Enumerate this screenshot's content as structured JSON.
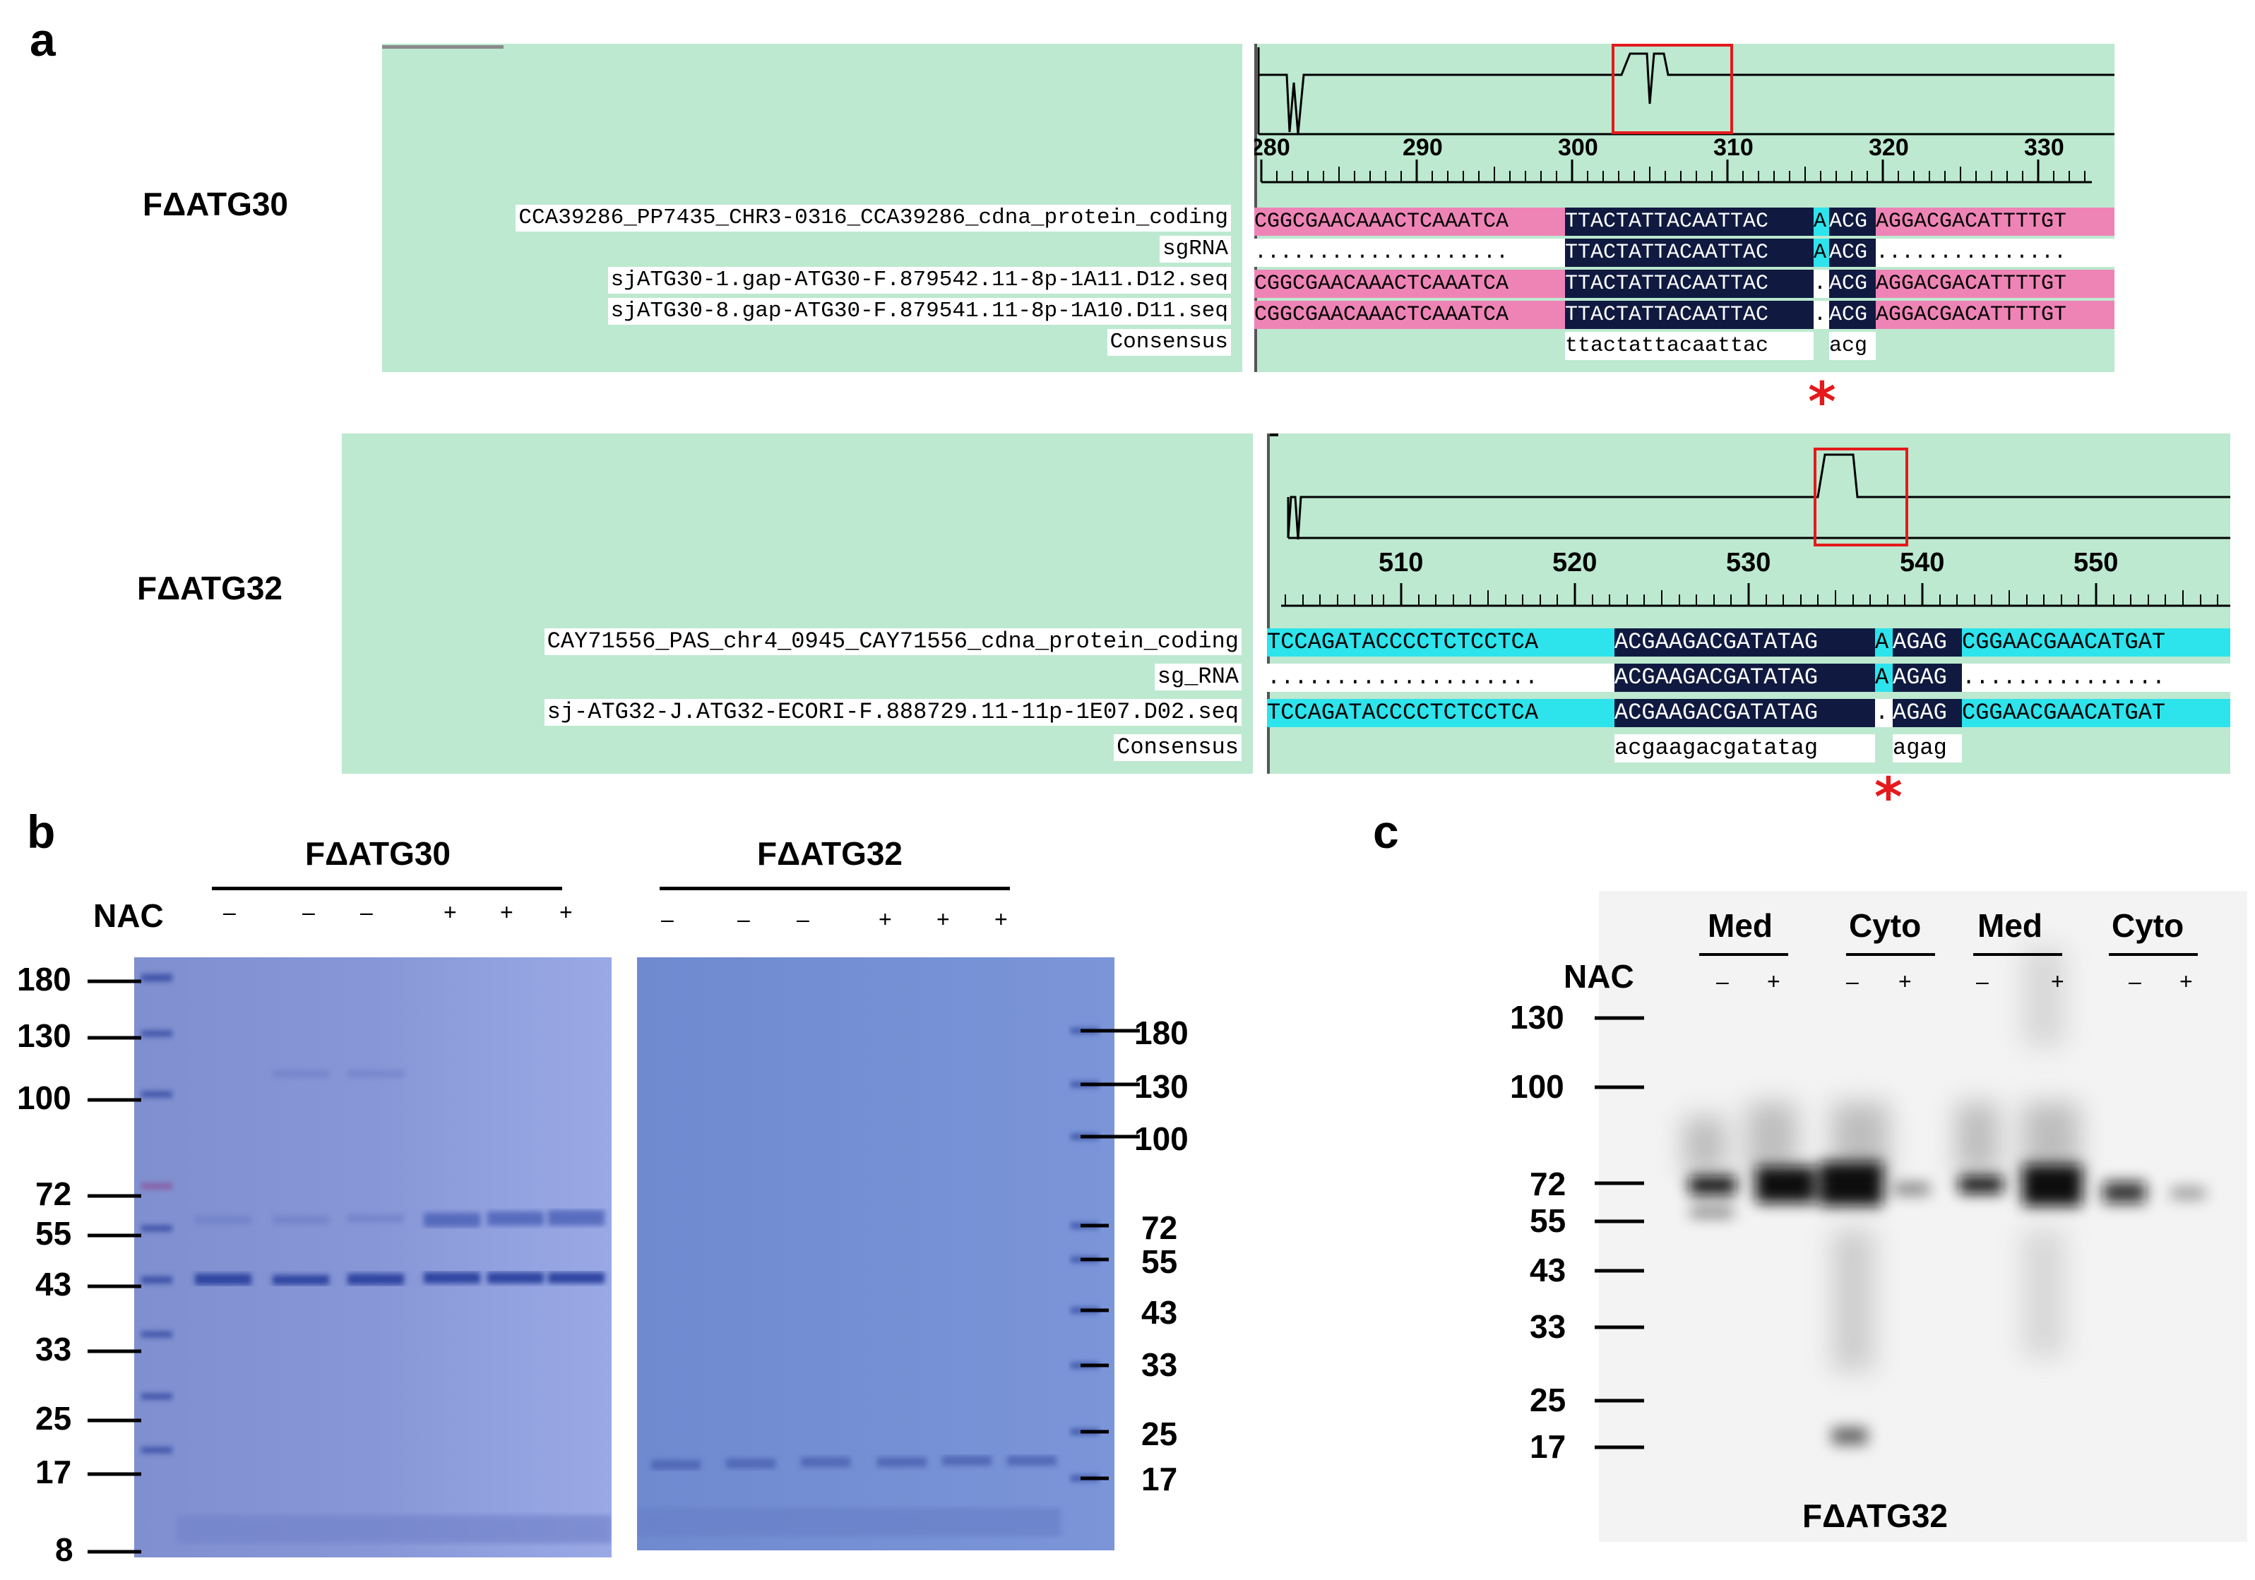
{
  "panel_a": {
    "letter": "a",
    "alignments": [
      {
        "strain": "FΔATG30",
        "ruler_ticks": [
          "280",
          "290",
          "300",
          "310",
          "320",
          "330"
        ],
        "sequence_names": [
          "CCA39286_PP7435_CHR3-0316_CCA39286_cdna_protein_coding",
          "sgRNA",
          "sjATG30-1.gap-ATG30-F.879542.11-8p-1A11.D12.seq",
          "sjATG30-8.gap-ATG30-F.879541.11-8p-1A10.D11.seq",
          "Consensus"
        ],
        "rows": [
          {
            "left": "CGGCGAACAAACTCAAATCA",
            "target": "TTACTATTACAATTAC",
            "gap": "A",
            "right": "ACG",
            "tail": "AGGACGACATTTTGT"
          },
          {
            "left": "....................",
            "target": "TTACTATTACAATTAC",
            "gap": "A",
            "right": "ACG",
            "tail": "..............."
          },
          {
            "left": "CGGCGAACAAACTCAAATCA",
            "target": "TTACTATTACAATTAC",
            "gap": ".",
            "right": "ACG",
            "tail": "AGGACGACATTTTGT"
          },
          {
            "left": "CGGCGAACAAACTCAAATCA",
            "target": "TTACTATTACAATTAC",
            "gap": ".",
            "right": "ACG",
            "tail": "AGGACGACATTTTGT"
          },
          {
            "left": "",
            "target": "ttactattacaattac",
            "gap": "",
            "right": "acg",
            "tail": ""
          }
        ],
        "marker": "*"
      },
      {
        "strain": "FΔATG32",
        "ruler_ticks": [
          "510",
          "520",
          "530",
          "540",
          "550"
        ],
        "sequence_names": [
          "CAY71556_PAS_chr4_0945_CAY71556_cdna_protein_coding",
          "sg_RNA",
          "sj-ATG32-J.ATG32-ECORI-F.888729.11-11p-1E07.D02.seq",
          "Consensus"
        ],
        "rows": [
          {
            "left": "TCCAGATACCCCTCTCCTCA",
            "target": "ACGAAGACGATATAG",
            "gap": "A",
            "right": "AGAG",
            "tail": "CGGAACGAACATGAT"
          },
          {
            "left": "....................",
            "target": "ACGAAGACGATATAG",
            "gap": "A",
            "right": "AGAG",
            "tail": "..............."
          },
          {
            "left": "TCCAGATACCCCTCTCCTCA",
            "target": "ACGAAGACGATATAG",
            "gap": ".",
            "right": "AGAG",
            "tail": "CGGAACGAACATGAT"
          },
          {
            "left": "",
            "target": "acgaagacgatatag",
            "gap": "",
            "right": "agag",
            "tail": ""
          }
        ],
        "marker": "*"
      }
    ]
  },
  "panel_b": {
    "letter": "b",
    "nac_label": "NAC",
    "gel1_title": "FΔATG30",
    "gel2_title": "FΔATG32",
    "gel1_signs": [
      "–",
      "–",
      "–",
      "+",
      "+",
      "+"
    ],
    "gel2_signs": [
      "–",
      "–",
      "–",
      "+",
      "+",
      "+"
    ],
    "gel1_markers": [
      "180",
      "130",
      "100",
      "72",
      "55",
      "43",
      "33",
      "25",
      "17",
      "8"
    ],
    "gel2_markers": [
      "180",
      "130",
      "100",
      "72",
      "55",
      "43",
      "33",
      "25",
      "17"
    ]
  },
  "panel_c": {
    "letter": "c",
    "nac_label": "NAC",
    "groups": [
      "Med",
      "Cyto",
      "Med",
      "Cyto"
    ],
    "signs": [
      "–",
      "+",
      "–",
      "+",
      "–",
      "+",
      "–",
      "+"
    ],
    "markers": [
      "130",
      "100",
      "72",
      "55",
      "43",
      "33",
      "25",
      "17"
    ],
    "blot_label": "FΔATG32"
  }
}
